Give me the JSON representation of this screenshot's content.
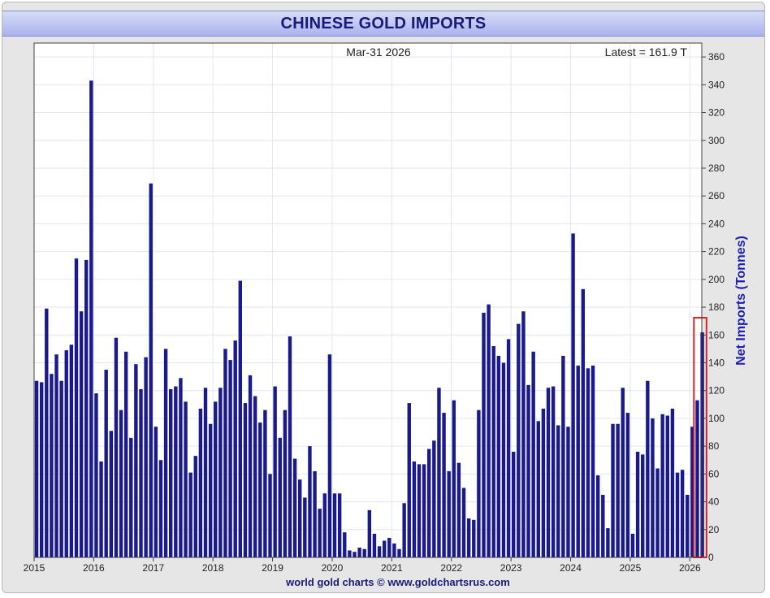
{
  "title": "CHINESE GOLD IMPORTS",
  "date_label": "Mar-31  2026",
  "latest_label": "Latest = 161.9 T",
  "footer": "world gold charts © www.goldchartsrus.com",
  "chart_data": {
    "type": "bar",
    "title": "CHINESE GOLD IMPORTS",
    "ylabel": "Net Imports (Tonnes)",
    "xlabel": "",
    "ylim": [
      0,
      370
    ],
    "x_range": [
      2015,
      2026.2
    ],
    "yticks": [
      0,
      20,
      40,
      60,
      80,
      100,
      120,
      140,
      160,
      180,
      200,
      220,
      240,
      260,
      280,
      300,
      320,
      340,
      360
    ],
    "xticks": [
      "2015",
      "2016",
      "2017",
      "2018",
      "2019",
      "2020",
      "2021",
      "2022",
      "2023",
      "2024",
      "2025",
      "2026"
    ],
    "x_start": "2015-01",
    "bar_color": "#1a1a8c",
    "highlight_color": "#e02020",
    "grid": true,
    "values": [
      127,
      126,
      179,
      132,
      146,
      127,
      149,
      153,
      215,
      177,
      214,
      343,
      118,
      69,
      135,
      91,
      158,
      106,
      148,
      86,
      139,
      121,
      144,
      269,
      94,
      70,
      150,
      121,
      123,
      129,
      112,
      61,
      73,
      107,
      122,
      96,
      112,
      122,
      150,
      142,
      156,
      199,
      111,
      131,
      116,
      97,
      106,
      60,
      123,
      86,
      106,
      159,
      71,
      56,
      43,
      80,
      62,
      35,
      46,
      146,
      46,
      46,
      18,
      5,
      4,
      7,
      6,
      34,
      17,
      8,
      12,
      14,
      10,
      6,
      39,
      111,
      69,
      67,
      67,
      78,
      84,
      122,
      104,
      62,
      113,
      68,
      50,
      28,
      27,
      106,
      176,
      182,
      152,
      145,
      140,
      157,
      76,
      168,
      177,
      124,
      148,
      98,
      107,
      122,
      123,
      95,
      145,
      94,
      233,
      138,
      193,
      136,
      138,
      59,
      45,
      21,
      96,
      96,
      122,
      104,
      17,
      76,
      74,
      127,
      100,
      64,
      103,
      102,
      107,
      61,
      63,
      45,
      94,
      113,
      161.9
    ],
    "highlight_last": 2
  }
}
